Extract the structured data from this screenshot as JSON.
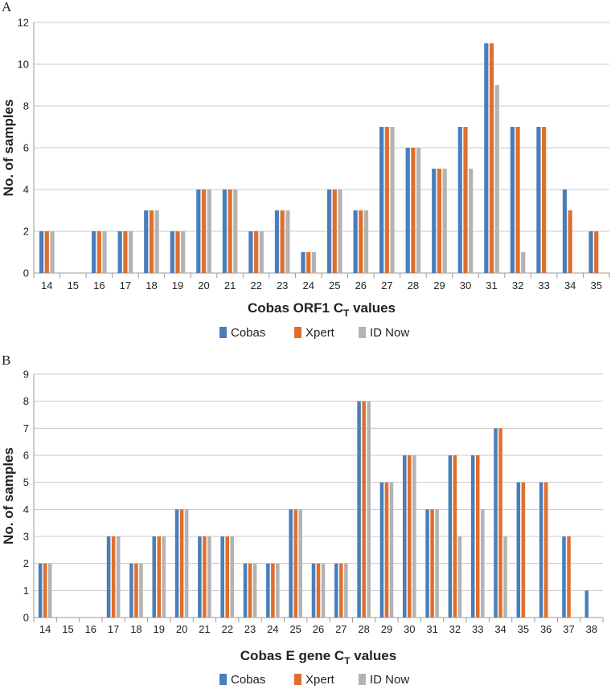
{
  "colors": {
    "Cobas": "#4a7ebb",
    "Xpert": "#e06f2c",
    "ID Now": "#b3b3b3"
  },
  "chart_data": [
    {
      "type": "bar",
      "panel_label": "A",
      "title": "",
      "xlabel": "Cobas ORF1 C",
      "xlabel_sub": "T",
      "xlabel_suffix": " values",
      "ylabel": "No. of samples",
      "ylim": [
        0,
        12
      ],
      "yticks": [
        0,
        2,
        4,
        6,
        8,
        10,
        12
      ],
      "categories": [
        "14",
        "15",
        "16",
        "17",
        "18",
        "19",
        "20",
        "21",
        "22",
        "23",
        "24",
        "25",
        "26",
        "27",
        "28",
        "29",
        "30",
        "31",
        "32",
        "33",
        "34",
        "35"
      ],
      "series": [
        {
          "name": "Cobas",
          "values": [
            2,
            0,
            2,
            2,
            3,
            2,
            4,
            4,
            2,
            3,
            1,
            4,
            3,
            7,
            6,
            5,
            7,
            11,
            7,
            7,
            4,
            2
          ]
        },
        {
          "name": "Xpert",
          "values": [
            2,
            0,
            2,
            2,
            3,
            2,
            4,
            4,
            2,
            3,
            1,
            4,
            3,
            7,
            6,
            5,
            7,
            11,
            7,
            7,
            3,
            2
          ]
        },
        {
          "name": "ID Now",
          "values": [
            2,
            0,
            2,
            2,
            3,
            2,
            4,
            4,
            2,
            3,
            1,
            4,
            3,
            7,
            6,
            5,
            5,
            9,
            1,
            0,
            0,
            0
          ]
        }
      ],
      "legend": [
        "Cobas",
        "Xpert",
        "ID Now"
      ],
      "legend_position": "bottom",
      "grid": true
    },
    {
      "type": "bar",
      "panel_label": "B",
      "title": "",
      "xlabel": "Cobas E gene C",
      "xlabel_sub": "T",
      "xlabel_suffix": " values",
      "ylabel": "No. of samples",
      "ylim": [
        0,
        9
      ],
      "yticks": [
        0,
        1,
        2,
        3,
        4,
        5,
        6,
        7,
        8,
        9
      ],
      "categories": [
        "14",
        "15",
        "16",
        "17",
        "18",
        "19",
        "20",
        "21",
        "22",
        "23",
        "24",
        "25",
        "26",
        "27",
        "28",
        "29",
        "30",
        "31",
        "32",
        "33",
        "34",
        "35",
        "36",
        "37",
        "38"
      ],
      "series": [
        {
          "name": "Cobas",
          "values": [
            2,
            0,
            0,
            3,
            2,
            3,
            4,
            3,
            3,
            2,
            2,
            4,
            2,
            2,
            8,
            5,
            6,
            4,
            6,
            6,
            7,
            5,
            5,
            3,
            1
          ]
        },
        {
          "name": "Xpert",
          "values": [
            2,
            0,
            0,
            3,
            2,
            3,
            4,
            3,
            3,
            2,
            2,
            4,
            2,
            2,
            8,
            5,
            6,
            4,
            6,
            6,
            7,
            5,
            5,
            3,
            0
          ]
        },
        {
          "name": "ID Now",
          "values": [
            2,
            0,
            0,
            3,
            2,
            3,
            4,
            3,
            3,
            2,
            2,
            4,
            2,
            2,
            8,
            5,
            6,
            4,
            3,
            4,
            3,
            0,
            0,
            0,
            0
          ]
        }
      ],
      "legend": [
        "Cobas",
        "Xpert",
        "ID Now"
      ],
      "legend_position": "bottom",
      "grid": true
    }
  ]
}
